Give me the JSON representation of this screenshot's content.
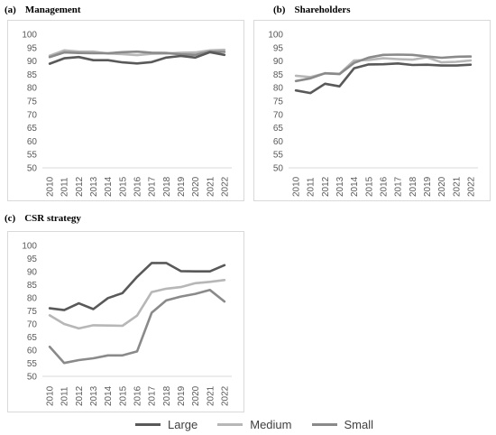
{
  "colors": {
    "Large": "#595959",
    "Medium": "#b7b7b7",
    "Small": "#8a8a8a"
  },
  "legend": [
    "Large",
    "Medium",
    "Small"
  ],
  "chart_data": [
    {
      "type": "line",
      "title": "Management",
      "panel_label": "(a)",
      "x": [
        "2010",
        "2011",
        "2012",
        "2013",
        "2014",
        "2015",
        "2016",
        "2017",
        "2018",
        "2019",
        "2020",
        "2021",
        "2022"
      ],
      "ylim": [
        50,
        100
      ],
      "yticks": [
        50,
        55,
        60,
        65,
        70,
        75,
        80,
        85,
        90,
        95,
        100
      ],
      "series": [
        {
          "name": "Large",
          "values": [
            89,
            91,
            91.5,
            90.3,
            90.3,
            89.5,
            89.1,
            89.6,
            91.3,
            91.9,
            91.3,
            93.3,
            92.3
          ]
        },
        {
          "name": "Medium",
          "values": [
            92,
            94,
            93.5,
            93.5,
            92.8,
            92.6,
            92.2,
            92.7,
            92.8,
            93.1,
            93.2,
            94,
            94.2
          ]
        },
        {
          "name": "Small",
          "values": [
            91.5,
            93.2,
            93,
            92.9,
            92.9,
            93.3,
            93.5,
            93.1,
            93,
            92.5,
            92.3,
            93.5,
            93.4
          ]
        }
      ]
    },
    {
      "type": "line",
      "title": "Shareholders",
      "panel_label": "(b)",
      "x": [
        "2010",
        "2011",
        "2012",
        "2013",
        "2014",
        "2015",
        "2016",
        "2017",
        "2018",
        "2019",
        "2020",
        "2021",
        "2022"
      ],
      "ylim": [
        50,
        100
      ],
      "yticks": [
        50,
        55,
        60,
        65,
        70,
        75,
        80,
        85,
        90,
        95,
        100
      ],
      "series": [
        {
          "name": "Large",
          "values": [
            79,
            78,
            81.5,
            80.5,
            87.3,
            88.7,
            88.8,
            89.1,
            88.5,
            88.6,
            88.3,
            88.3,
            88.6
          ]
        },
        {
          "name": "Medium",
          "values": [
            84.5,
            84,
            85.4,
            85.2,
            90.2,
            90.4,
            91,
            90.7,
            90.5,
            91.4,
            89.5,
            89.7,
            90.2
          ]
        },
        {
          "name": "Small",
          "values": [
            82.5,
            83.5,
            85.4,
            85.1,
            89.3,
            91.3,
            92.3,
            92.4,
            92.3,
            91.7,
            91.2,
            91.6,
            91.7
          ]
        }
      ]
    },
    {
      "type": "line",
      "title": "CSR strategy",
      "panel_label": "(c)",
      "x": [
        "2010",
        "2011",
        "2012",
        "2013",
        "2014",
        "2015",
        "2016",
        "2017",
        "2018",
        "2019",
        "2020",
        "2021",
        "2022"
      ],
      "ylim": [
        50,
        100
      ],
      "yticks": [
        50,
        55,
        60,
        65,
        70,
        75,
        80,
        85,
        90,
        95,
        100
      ],
      "series": [
        {
          "name": "Large",
          "values": [
            76,
            75.3,
            77.9,
            75.7,
            79.9,
            81.8,
            88,
            93.3,
            93.3,
            90.2,
            90.1,
            90.1,
            92.5
          ]
        },
        {
          "name": "Medium",
          "values": [
            73.3,
            70,
            68.3,
            69.5,
            69.4,
            69.3,
            73.2,
            82.2,
            83.5,
            84.1,
            85.6,
            86.1,
            86.8
          ]
        },
        {
          "name": "Small",
          "values": [
            61.3,
            55.1,
            56.2,
            56.9,
            58,
            58,
            59.5,
            74.3,
            79,
            80.5,
            81.5,
            83,
            78.6
          ]
        }
      ]
    }
  ]
}
